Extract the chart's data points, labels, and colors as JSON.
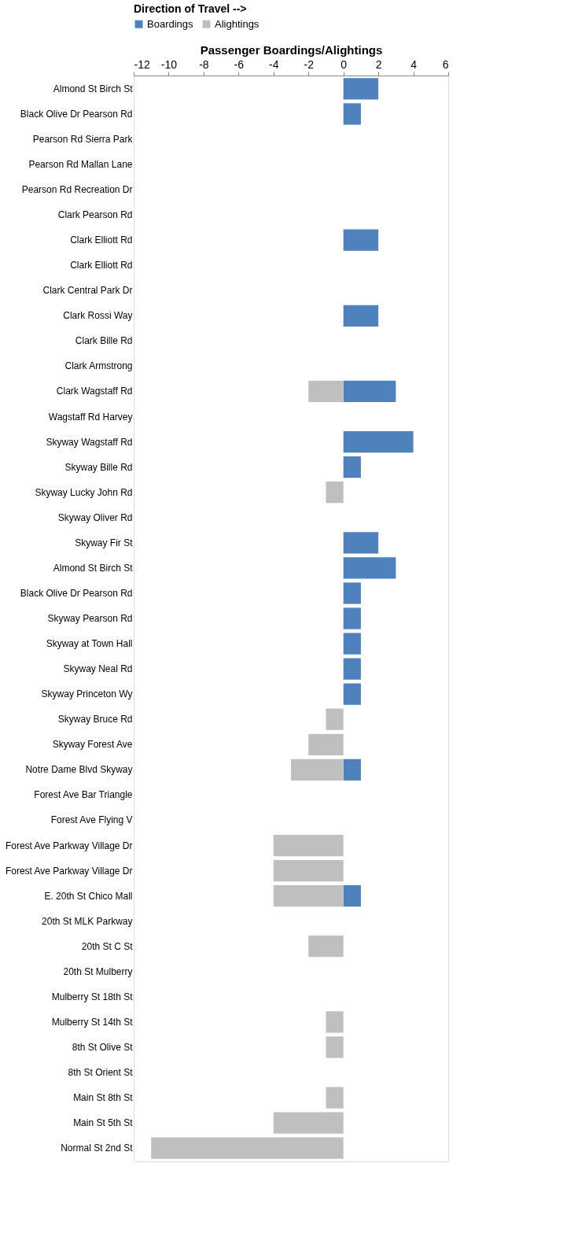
{
  "chart_data": {
    "type": "bar",
    "orientation": "horizontal",
    "xlabel": "Passenger Boardings/Alightings",
    "legend_title": "Direction of Travel -->",
    "legend": "top",
    "categories": [
      "Almond St Birch St",
      "Black Olive Dr Pearson Rd",
      "Pearson Rd Sierra Park",
      "Pearson Rd Mallan Lane",
      "Pearson Rd Recreation Dr",
      "Clark Pearson Rd",
      "Clark Elliott Rd",
      "Clark Elliott Rd",
      "Clark Central Park Dr",
      "Clark Rossi Way",
      "Clark Bille Rd",
      "Clark Armstrong",
      "Clark Wagstaff Rd",
      "Wagstaff Rd Harvey",
      "Skyway Wagstaff Rd",
      "Skyway Bille Rd",
      "Skyway Lucky John Rd",
      "Skyway Oliver Rd",
      "Skyway Fir St",
      "Almond St Birch St",
      "Black Olive Dr Pearson Rd",
      "Skyway Pearson Rd",
      "Skyway at Town Hall",
      "Skyway Neal Rd",
      "Skyway Princeton Wy",
      "Skyway Bruce Rd",
      "Skyway Forest Ave",
      "Notre Dame Blvd Skyway",
      "Forest Ave Bar Triangle",
      "Forest Ave Flying V",
      "Forest Ave Parkway Village Dr",
      "Forest Ave Parkway Village Dr",
      "E. 20th St Chico Mall",
      "20th St MLK Parkway",
      "20th St C St",
      "20th St Mulberry",
      "Mulberry St 18th St",
      "Mulberry St 14th St",
      "8th St Olive St",
      "8th St Orient St",
      "Main St 8th St",
      "Main St 5th St",
      "Normal St 2nd St"
    ],
    "series": [
      {
        "name": "Boardings",
        "color": "#4f81bd",
        "values": [
          2,
          1,
          0,
          0,
          0,
          0,
          2,
          0,
          0,
          2,
          0,
          0,
          3,
          0,
          4,
          1,
          0,
          0,
          2,
          3,
          1,
          1,
          1,
          1,
          1,
          0,
          0,
          1,
          0,
          0,
          0,
          0,
          1,
          0,
          0,
          0,
          0,
          0,
          0,
          0,
          0,
          0,
          0
        ]
      },
      {
        "name": "Alightings",
        "color": "#bfbfbf",
        "values": [
          0,
          0,
          0,
          0,
          0,
          0,
          0,
          0,
          0,
          0,
          0,
          0,
          -2,
          0,
          0,
          0,
          -1,
          0,
          0,
          0,
          0,
          0,
          0,
          0,
          0,
          -1,
          -2,
          -3,
          0,
          0,
          -4,
          -4,
          -4,
          0,
          -2,
          0,
          0,
          -1,
          -1,
          0,
          -1,
          -4,
          -11
        ]
      }
    ],
    "xlim": [
      -12,
      6
    ],
    "xticks": [
      -12,
      -10,
      -8,
      -6,
      -4,
      -2,
      0,
      2,
      4,
      6
    ],
    "grid": false
  }
}
